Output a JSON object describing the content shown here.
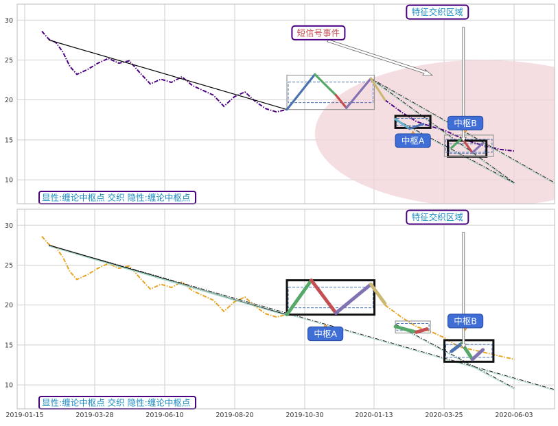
{
  "chart_data": [
    {
      "type": "line",
      "panel": "top",
      "y_ticks": [
        10,
        15,
        20,
        25,
        30
      ],
      "ylim": [
        7,
        32
      ],
      "x_ticks": [
        "2019-01-15",
        "2019-03-28",
        "2019-06-10",
        "2019-08-20",
        "2019-10-30",
        "2020-01-13",
        "2020-03-25",
        "2020-06-03"
      ],
      "grid": true,
      "price_series": {
        "color": "#4b0082",
        "style": "dash-dot",
        "points": [
          [
            0,
            28.6
          ],
          [
            2,
            27.6
          ],
          [
            4,
            27.2
          ],
          [
            6,
            26.0
          ],
          [
            8,
            24.2
          ],
          [
            10,
            23.2
          ],
          [
            13,
            23.8
          ],
          [
            16,
            24.6
          ],
          [
            19,
            25.2
          ],
          [
            22,
            24.6
          ],
          [
            25,
            24.9
          ],
          [
            28,
            23.4
          ],
          [
            31,
            22.0
          ],
          [
            34,
            22.6
          ],
          [
            37,
            22.2
          ],
          [
            40,
            22.9
          ],
          [
            43,
            21.8
          ],
          [
            46,
            21.2
          ],
          [
            49,
            20.6
          ],
          [
            52,
            19.2
          ],
          [
            55,
            20.4
          ],
          [
            58,
            21.0
          ],
          [
            61,
            19.8
          ],
          [
            64,
            18.9
          ],
          [
            67,
            18.5
          ],
          [
            70,
            18.8
          ]
        ]
      },
      "price_series_tail": {
        "color": "#4b0082",
        "style": "dash-dot",
        "points": [
          [
            98,
            20.0
          ],
          [
            103,
            18.4
          ],
          [
            107,
            17.3
          ],
          [
            111,
            16.7
          ],
          [
            115,
            16.2
          ],
          [
            119,
            15.4
          ],
          [
            123,
            14.7
          ],
          [
            127,
            14.2
          ],
          [
            131,
            13.8
          ],
          [
            135,
            13.6
          ]
        ]
      },
      "trend_line": {
        "color": "#000000",
        "points": [
          [
            2,
            27.5
          ],
          [
            70,
            18.8
          ]
        ]
      },
      "zigzag": [
        {
          "from": [
            70,
            18.8
          ],
          "to": [
            78,
            23.2
          ],
          "color": "#4c72b0"
        },
        {
          "from": [
            78,
            23.2
          ],
          "to": [
            84,
            20.6
          ],
          "color": "#55a868"
        },
        {
          "from": [
            84,
            20.6
          ],
          "to": [
            87,
            19.0
          ],
          "color": "#c44e52"
        },
        {
          "from": [
            87,
            19.0
          ],
          "to": [
            94,
            22.7
          ],
          "color": "#8172b2"
        },
        {
          "from": [
            94,
            22.7
          ],
          "to": [
            98,
            20.0
          ],
          "color": "#ccb974"
        },
        {
          "from": [
            101,
            17.6
          ],
          "to": [
            105,
            16.4
          ],
          "color": "#64b5cd"
        },
        {
          "from": [
            105,
            16.4
          ],
          "to": [
            109,
            17.0
          ],
          "color": "#4c72b0"
        },
        {
          "from": [
            117,
            14.0
          ],
          "to": [
            120,
            15.2
          ],
          "color": "#55a868"
        },
        {
          "from": [
            120,
            15.2
          ],
          "to": [
            123,
            13.4
          ],
          "color": "#c44e52"
        },
        {
          "from": [
            123,
            13.4
          ],
          "to": [
            126,
            14.6
          ],
          "color": "#8172b2"
        }
      ],
      "pivot_boxes": [
        {
          "x0": 70,
          "x1": 95,
          "y0": 18.8,
          "y1": 23.1,
          "style": "thin-gray"
        },
        {
          "x0": 101,
          "x1": 111,
          "y0": 16.5,
          "y1": 18.0,
          "style": "bold-black"
        },
        {
          "x0": 116,
          "x1": 127,
          "y0": 12.9,
          "y1": 14.9,
          "style": "bold-black"
        },
        {
          "x0": 115,
          "x1": 129,
          "y0": 12.9,
          "y1": 15.6,
          "style": "thin-gray"
        }
      ],
      "projection_lines": [
        {
          "from": [
            94,
            22.7
          ],
          "to": [
            149,
            9.0
          ]
        },
        {
          "from": [
            94,
            22.7
          ],
          "to": [
            135,
            9.6
          ]
        },
        {
          "from": [
            101,
            17.6
          ],
          "to": [
            135,
            9.6
          ]
        }
      ],
      "ellipse": {
        "cx": 126,
        "cy": 15.8,
        "rx": 48,
        "ry": 9.2,
        "color": "#f2d3d7"
      },
      "annotations": [
        {
          "text": "短信号事件",
          "at": [
            79,
            28.4
          ],
          "color": "#c44e52"
        },
        {
          "text": "特征交织区域",
          "at": [
            113,
            31.0
          ],
          "color": "#1c8cc4"
        },
        {
          "text": "中枢A",
          "at": [
            106,
            14.9
          ],
          "color": "#ffffff"
        },
        {
          "text": "中枢B",
          "at": [
            121,
            17.1
          ],
          "color": "#ffffff"
        }
      ],
      "legend_text": "显性:缠论中枢点 交织 隐性:缠论中枢点"
    },
    {
      "type": "line",
      "panel": "bottom",
      "y_ticks": [
        10,
        15,
        20,
        25,
        30
      ],
      "ylim": [
        7,
        32
      ],
      "x_ticks": [
        "2019-01-15",
        "2019-03-28",
        "2019-06-10",
        "2019-08-20",
        "2019-10-30",
        "2020-01-13",
        "2020-03-25",
        "2020-06-03"
      ],
      "grid": true,
      "price_series": {
        "color": "#e8a424",
        "style": "dash-dot",
        "points": [
          [
            0,
            28.6
          ],
          [
            2,
            27.6
          ],
          [
            4,
            27.2
          ],
          [
            6,
            26.0
          ],
          [
            8,
            24.2
          ],
          [
            10,
            23.2
          ],
          [
            13,
            23.8
          ],
          [
            16,
            24.6
          ],
          [
            19,
            25.2
          ],
          [
            22,
            24.6
          ],
          [
            25,
            24.9
          ],
          [
            28,
            23.4
          ],
          [
            31,
            22.0
          ],
          [
            34,
            22.6
          ],
          [
            37,
            22.2
          ],
          [
            40,
            22.9
          ],
          [
            43,
            21.8
          ],
          [
            46,
            21.2
          ],
          [
            49,
            20.6
          ],
          [
            52,
            19.2
          ],
          [
            55,
            20.4
          ],
          [
            58,
            21.0
          ],
          [
            61,
            19.8
          ],
          [
            64,
            18.9
          ],
          [
            67,
            18.5
          ],
          [
            70,
            18.8
          ]
        ]
      },
      "price_series_tail": {
        "color": "#e8a424",
        "style": "dash-dot",
        "points": [
          [
            98,
            20.0
          ],
          [
            103,
            18.4
          ],
          [
            107,
            17.3
          ],
          [
            111,
            16.7
          ],
          [
            115,
            15.9
          ],
          [
            119,
            14.8
          ],
          [
            123,
            14.4
          ],
          [
            127,
            14.0
          ],
          [
            131,
            13.6
          ],
          [
            135,
            13.2
          ]
        ]
      },
      "trend_line": {
        "color": "#000000",
        "points": [
          [
            2,
            27.5
          ],
          [
            70,
            18.8
          ]
        ]
      },
      "zigzag": [
        {
          "from": [
            70,
            18.8
          ],
          "to": [
            77,
            23.1
          ],
          "color": "#55a868"
        },
        {
          "from": [
            77,
            23.1
          ],
          "to": [
            84,
            19.0
          ],
          "color": "#c44e52"
        },
        {
          "from": [
            84,
            19.0
          ],
          "to": [
            94,
            22.6
          ],
          "color": "#8172b2"
        },
        {
          "from": [
            94,
            22.6
          ],
          "to": [
            98,
            20.2
          ],
          "color": "#ccb974"
        },
        {
          "from": [
            101,
            17.3
          ],
          "to": [
            107,
            16.6
          ],
          "color": "#55a868"
        },
        {
          "from": [
            107,
            16.6
          ],
          "to": [
            110,
            17.0
          ],
          "color": "#c44e52"
        },
        {
          "from": [
            117,
            14.2
          ],
          "to": [
            120,
            15.2
          ],
          "color": "#4c72b0"
        },
        {
          "from": [
            120,
            15.2
          ],
          "to": [
            123,
            13.2
          ],
          "color": "#55a868"
        },
        {
          "from": [
            123,
            13.2
          ],
          "to": [
            126,
            14.4
          ],
          "color": "#8172b2"
        }
      ],
      "pivot_boxes": [
        {
          "x0": 70,
          "x1": 95,
          "y0": 18.8,
          "y1": 23.1,
          "style": "bold-black"
        },
        {
          "x0": 101,
          "x1": 111,
          "y0": 16.5,
          "y1": 18.0,
          "style": "thin-gray"
        },
        {
          "x0": 115,
          "x1": 129,
          "y0": 12.9,
          "y1": 15.6,
          "style": "bold-black"
        }
      ],
      "projection_lines": [
        {
          "from": [
            101,
            17.6
          ],
          "to": [
            135,
            9.6
          ]
        },
        {
          "from": [
            2,
            27.5
          ],
          "to": [
            149,
            9.1
          ]
        }
      ],
      "annotations": [
        {
          "text": "特征交织区域",
          "at": [
            113,
            31.0
          ],
          "color": "#1c8cc4"
        },
        {
          "text": "中枢A",
          "at": [
            81,
            16.4
          ],
          "color": "#ffffff"
        },
        {
          "text": "中枢B",
          "at": [
            121,
            18.0
          ],
          "color": "#ffffff"
        }
      ],
      "legend_text": "显性:缠论中枢点 交织 隐性:缠论中枢点"
    }
  ]
}
